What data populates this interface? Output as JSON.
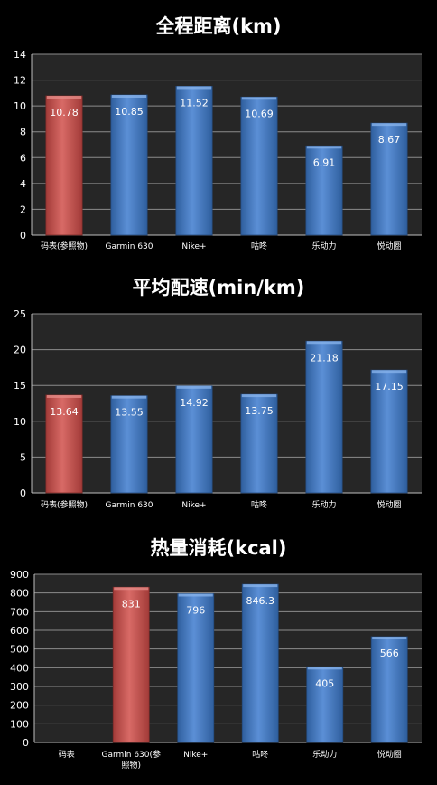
{
  "colors": {
    "background": "#000000",
    "plot_area": "#262626",
    "grid": "#8c8c8c",
    "axis": "#bfbfbf",
    "text": "#ffffff",
    "reference_bar": "#c0504d",
    "device_bar": "#4f81bd"
  },
  "chart_data": [
    {
      "type": "bar",
      "title": "全程距离(km)",
      "xlabel": "",
      "ylabel": "",
      "categories": [
        "码表(参照物)",
        "Garmin 630",
        "Nike+",
        "咕咚",
        "乐动力",
        "悦动圈"
      ],
      "values": [
        10.78,
        10.85,
        11.52,
        10.69,
        6.91,
        8.67
      ],
      "value_labels": [
        "10.78",
        "10.85",
        "11.52",
        "10.69",
        "6.91",
        "8.67"
      ],
      "highlight_index": 0,
      "ylim": [
        0,
        14
      ],
      "yticks": [
        0,
        2,
        4,
        6,
        8,
        10,
        12,
        14
      ],
      "grid": true,
      "legend": "none"
    },
    {
      "type": "bar",
      "title": "平均配速(min/km)",
      "xlabel": "",
      "ylabel": "",
      "categories": [
        "码表(参照物)",
        "Garmin 630",
        "Nike+",
        "咕咚",
        "乐动力",
        "悦动圈"
      ],
      "values": [
        13.64,
        13.55,
        14.92,
        13.75,
        21.18,
        17.15
      ],
      "value_labels": [
        "13.64",
        "13.55",
        "14.92",
        "13.75",
        "21.18",
        "17.15"
      ],
      "highlight_index": 0,
      "ylim": [
        0,
        25
      ],
      "yticks": [
        0,
        5,
        10,
        15,
        20,
        25
      ],
      "grid": true,
      "legend": "none"
    },
    {
      "type": "bar",
      "title": "热量消耗(kcal)",
      "xlabel": "",
      "ylabel": "",
      "categories": [
        "码表",
        "Garmin 630(参照物)",
        "Nike+",
        "咕咚",
        "乐动力",
        "悦动圈"
      ],
      "values": [
        null,
        831,
        796,
        846.3,
        405,
        566
      ],
      "value_labels": [
        "",
        "831",
        "796",
        "846.3",
        "405",
        "566"
      ],
      "highlight_index": 1,
      "ylim": [
        0,
        900
      ],
      "yticks": [
        0,
        100,
        200,
        300,
        400,
        500,
        600,
        700,
        800,
        900
      ],
      "grid": true,
      "legend": "none"
    }
  ]
}
